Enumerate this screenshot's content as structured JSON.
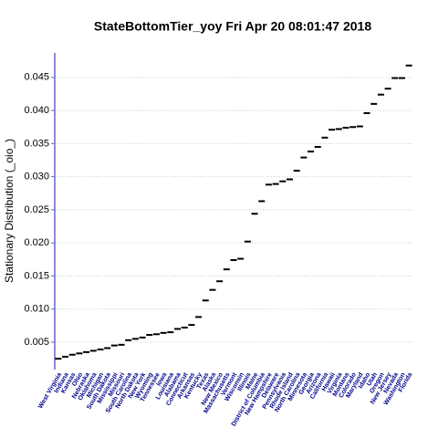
{
  "chart_data": {
    "type": "box",
    "title": "StateBottomTier_yoy  Fri Apr 20 08:01:47 2018",
    "y_label": "Stationary Distribution (_oio_)",
    "categories": [
      "West Virginia",
      "Indiana",
      "Kansas",
      "Ohio",
      "Nebraska",
      "Oklahoma",
      "Michigan",
      "South Dakota",
      "Mississippi",
      "Missouri",
      "South Carolina",
      "North Dakota",
      "New York",
      "Wyoming",
      "Tennessee",
      "Iowa",
      "Louisiana",
      "Alabama",
      "Connecticut",
      "Arkansas",
      "Kentucky",
      "Texas",
      "Alaska",
      "New Mexico",
      "Massachusetts",
      "Vermont",
      "Wisconsin",
      "Illinois",
      "Maine",
      "District of Columbia",
      "New Hampshire",
      "Delaware",
      "Pennsylvania",
      "Rhode Island",
      "North Carolina",
      "Minnesota",
      "Georgia",
      "Arizona",
      "California",
      "Hawaii",
      "Virginia",
      "Montana",
      "Colorado",
      "Maryland",
      "Idaho",
      "Utah",
      "Oregon",
      "New Jersey",
      "Nevada",
      "Washington",
      "Florida"
    ],
    "values": [
      0.0025,
      0.0028,
      0.0031,
      0.0033,
      0.0035,
      0.0037,
      0.0039,
      0.0041,
      0.0045,
      0.0046,
      0.0053,
      0.0055,
      0.0057,
      0.0061,
      0.0062,
      0.0064,
      0.0065,
      0.007,
      0.0072,
      0.0076,
      0.0088,
      0.0113,
      0.0129,
      0.0142,
      0.016,
      0.0174,
      0.0176,
      0.0202,
      0.0244,
      0.0263,
      0.0288,
      0.0289,
      0.0293,
      0.0296,
      0.0309,
      0.0329,
      0.0338,
      0.0345,
      0.0359,
      0.0371,
      0.0372,
      0.0374,
      0.0375,
      0.0376,
      0.0396,
      0.041,
      0.0424,
      0.0433,
      0.0449,
      0.0449,
      0.0468
    ],
    "color": "#000000",
    "label_color": "#00008b",
    "ylim": [
      0.00086,
      0.0487
    ],
    "yticks": [
      0.005,
      {
        "value": 0.01,
        "label": "0.010"
      },
      0.015,
      {
        "value": 0.02,
        "label": "0.020"
      },
      0.025,
      {
        "value": 0.03,
        "label": "0.030"
      },
      0.035,
      {
        "value": 0.04,
        "label": "0.040"
      },
      0.045
    ],
    "grid": true
  }
}
